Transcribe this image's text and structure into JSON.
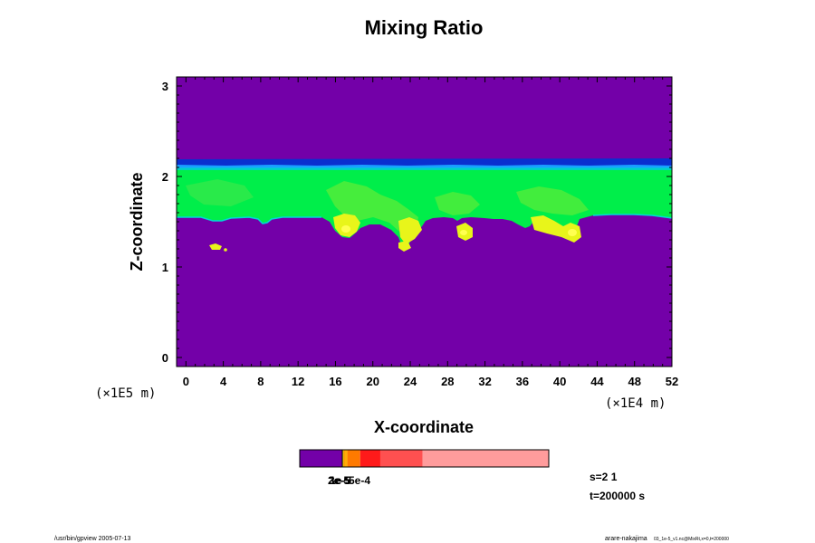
{
  "chart_data": {
    "type": "heatmap",
    "title": "Mixing Ratio",
    "xlabel": "X-coordinate",
    "ylabel": "Z-coordinate",
    "xlim": [
      -1,
      52
    ],
    "ylim": [
      -0.1,
      3.1
    ],
    "x_ticks": [
      0,
      4,
      8,
      12,
      16,
      20,
      24,
      28,
      32,
      36,
      40,
      44,
      48,
      52
    ],
    "y_ticks": [
      0,
      1,
      2,
      3
    ],
    "x_scale_label": "(×1E4 m)",
    "y_scale_label": "(×1E5 m)",
    "colors": {
      "background": "#7300a8",
      "top_band_dark": "#0a2fcf",
      "top_band_mid": "#1aa0ff",
      "layer": "#00ee4a",
      "layer_light": "#66f03a",
      "patch": "#e8f51a",
      "spot": "#ffff40",
      "edge": "#00d8d8"
    },
    "regions": [
      {
        "name": "dark top band",
        "x": [
          -1,
          52
        ],
        "z": [
          2.1,
          2.16
        ],
        "level": "low"
      },
      {
        "name": "upper green layer",
        "x": [
          -1,
          52
        ],
        "z": [
          1.55,
          2.1
        ],
        "level": "medium"
      },
      {
        "name": "yellow cells",
        "centers_x": [
          17,
          24,
          29.5,
          40.5
        ],
        "z": [
          1.2,
          1.6
        ],
        "level": "high"
      },
      {
        "name": "isolated cell",
        "x": [
          2.5,
          4
        ],
        "z": [
          1.15,
          1.2
        ],
        "level": "high"
      }
    ],
    "colorbar": {
      "segments": [
        {
          "color": "#7300a8",
          "width": 46
        },
        {
          "color": "#000000",
          "width": 1
        },
        {
          "color": "#e8c800",
          "width": 1
        },
        {
          "color": "#ff9e00",
          "width": 2
        },
        {
          "color": "#ffb000",
          "width": 2
        },
        {
          "color": "#ff7a00",
          "width": 14
        },
        {
          "color": "#ff1a1a",
          "width": 22
        },
        {
          "color": "#ff5050",
          "width": 46
        },
        {
          "color": "#ff9c9c",
          "width": 138
        }
      ],
      "label_overlap_1": "2e-5",
      "label_overlap_2": "3e-5",
      "label_overlap_3": "1e-5",
      "label_main": "5e-4"
    },
    "info": {
      "step": "s=2 1",
      "time": "t=200000 s"
    }
  },
  "footer": {
    "left": "/usr/bin/gpview 2005-07-13",
    "right": "arare-nakajima",
    "right_small": "03_1e-5_v1.nc@MixRt,x=0,t=200000"
  }
}
